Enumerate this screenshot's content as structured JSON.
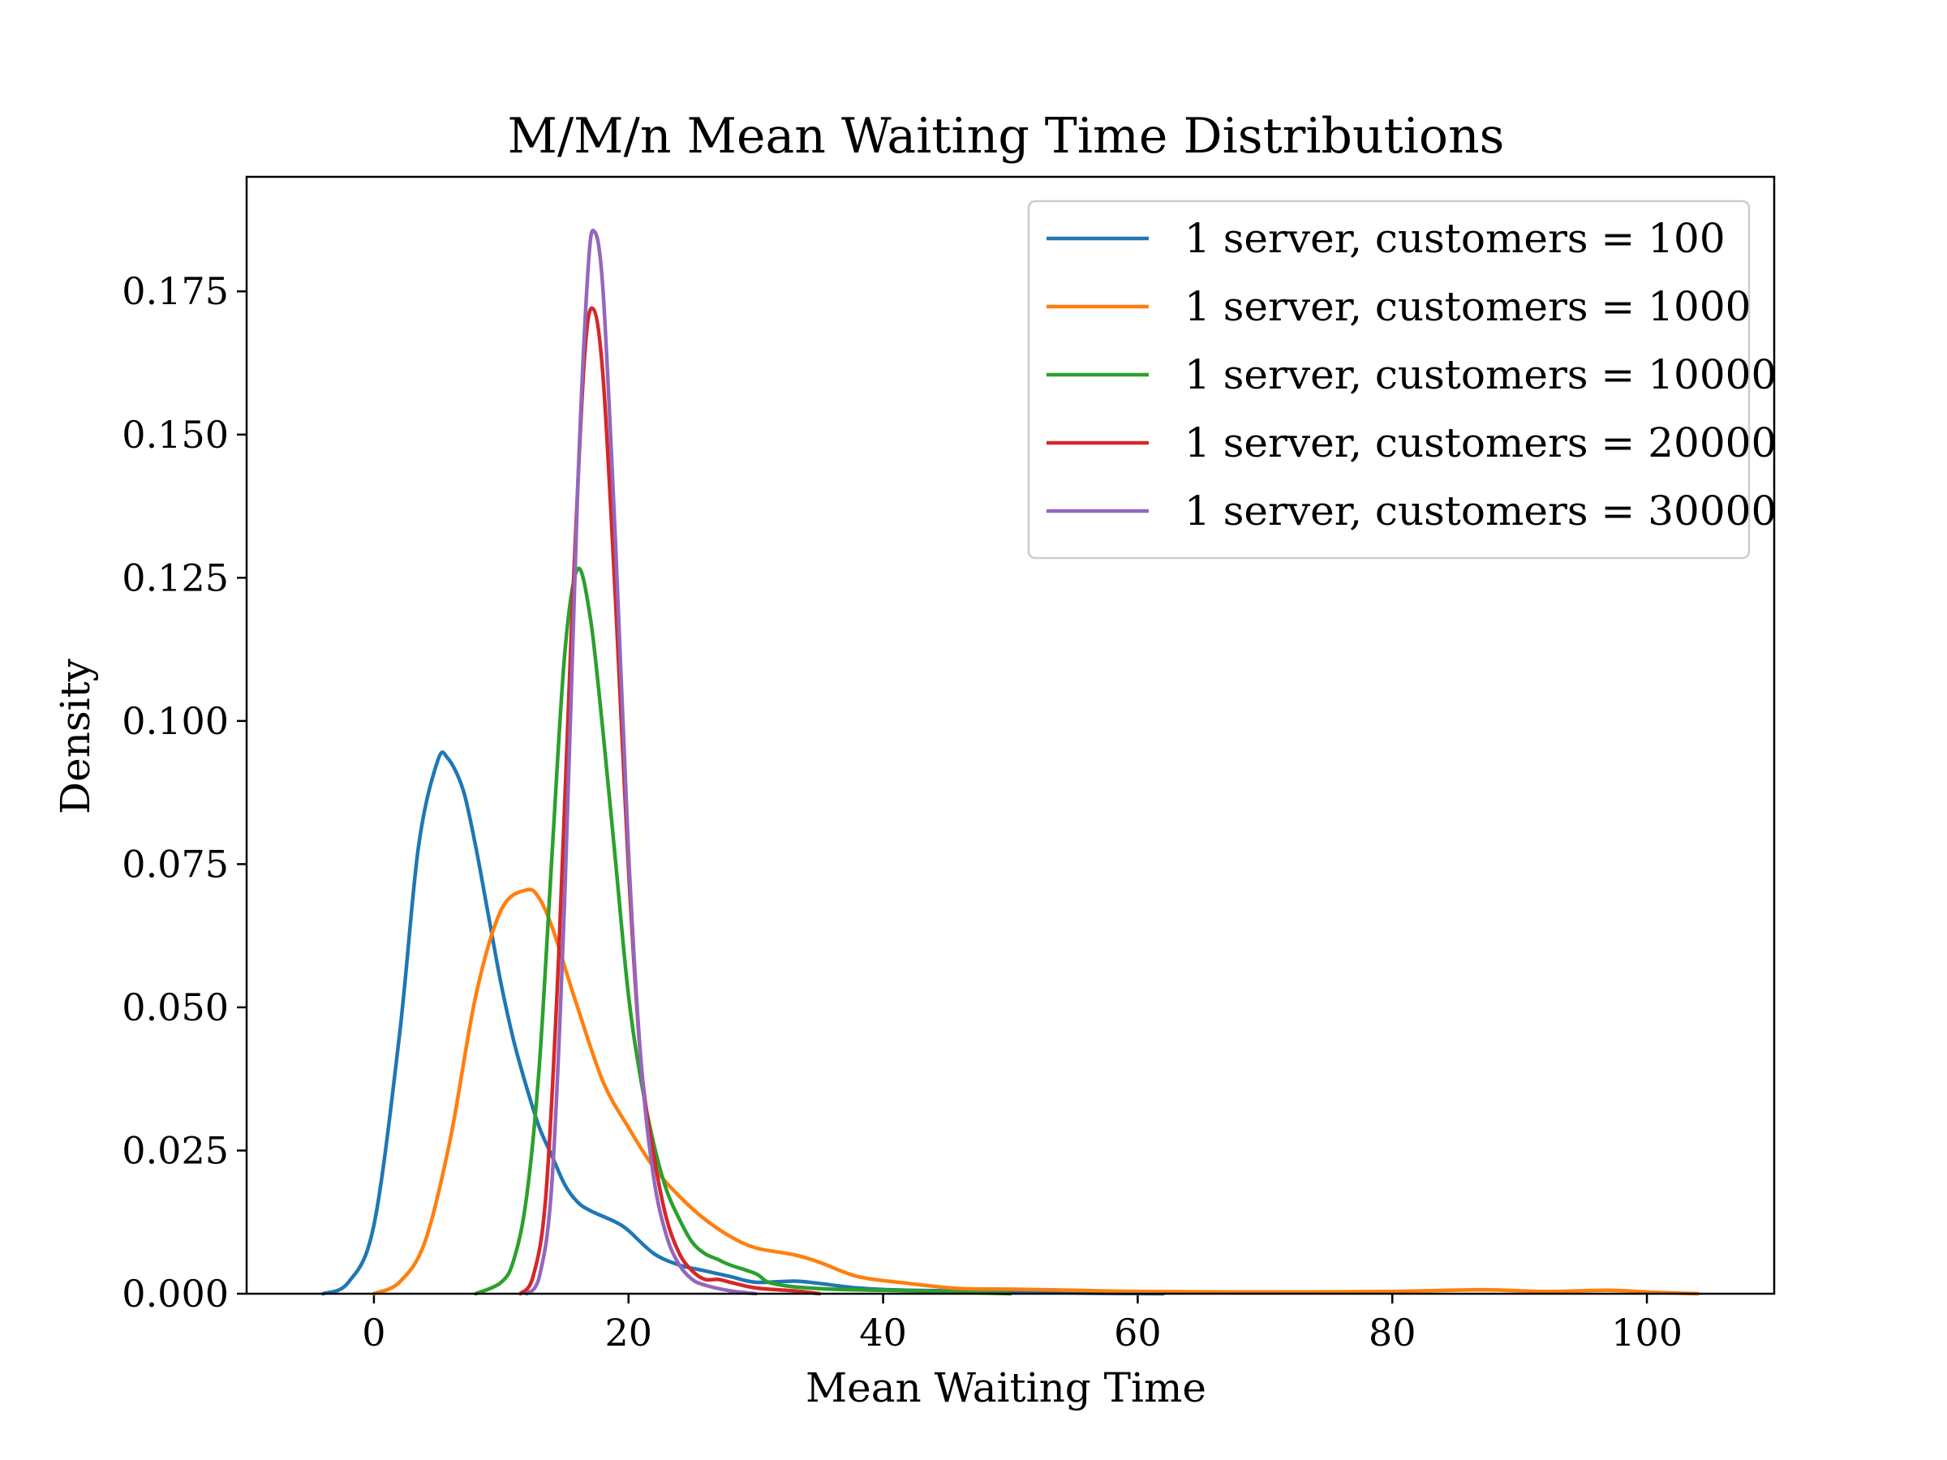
{
  "chart_data": {
    "type": "line",
    "title": "M/M/n Mean Waiting Time Distributions",
    "xlabel": "Mean Waiting Time",
    "ylabel": "Density",
    "xlim": [
      -10,
      110
    ],
    "ylim": [
      0,
      0.195
    ],
    "xticks": [
      0,
      20,
      40,
      60,
      80,
      100
    ],
    "xtick_labels": [
      "0",
      "20",
      "40",
      "60",
      "80",
      "100"
    ],
    "yticks": [
      0,
      0.025,
      0.05,
      0.075,
      0.1,
      0.125,
      0.15,
      0.175
    ],
    "ytick_labels": [
      "0.000",
      "0.025",
      "0.050",
      "0.075",
      "0.100",
      "0.125",
      "0.150",
      "0.175"
    ],
    "grid": false,
    "legend_position": "top-right",
    "series": [
      {
        "name": "1 server, customers = 100",
        "color": "#1f77b4",
        "points": [
          [
            -4,
            0
          ],
          [
            -2,
            0.002
          ],
          [
            0,
            0.012
          ],
          [
            2,
            0.045
          ],
          [
            3.5,
            0.078
          ],
          [
            5,
            0.093
          ],
          [
            5.8,
            0.0935
          ],
          [
            7,
            0.088
          ],
          [
            8,
            0.078
          ],
          [
            9,
            0.066
          ],
          [
            10,
            0.054
          ],
          [
            11,
            0.044
          ],
          [
            12,
            0.036
          ],
          [
            13,
            0.029
          ],
          [
            14,
            0.024
          ],
          [
            15,
            0.019
          ],
          [
            16,
            0.016
          ],
          [
            17,
            0.0145
          ],
          [
            19,
            0.0125
          ],
          [
            20,
            0.011
          ],
          [
            22,
            0.007
          ],
          [
            24,
            0.005
          ],
          [
            26,
            0.004
          ],
          [
            28,
            0.003
          ],
          [
            30,
            0.002
          ],
          [
            33,
            0.0022
          ],
          [
            35,
            0.0018
          ],
          [
            38,
            0.001
          ],
          [
            42,
            0.0006
          ],
          [
            50,
            0.0004
          ],
          [
            56,
            0.0001
          ],
          [
            62,
            0
          ]
        ]
      },
      {
        "name": "1 server, customers = 1000",
        "color": "#ff7f0e",
        "points": [
          [
            0,
            0
          ],
          [
            2,
            0.002
          ],
          [
            4,
            0.009
          ],
          [
            6,
            0.027
          ],
          [
            8,
            0.052
          ],
          [
            10,
            0.067
          ],
          [
            12,
            0.0705
          ],
          [
            13,
            0.069
          ],
          [
            14,
            0.064
          ],
          [
            15,
            0.057
          ],
          [
            16,
            0.05
          ],
          [
            18,
            0.037
          ],
          [
            20,
            0.029
          ],
          [
            22,
            0.022
          ],
          [
            24,
            0.017
          ],
          [
            26,
            0.013
          ],
          [
            28,
            0.01
          ],
          [
            30,
            0.008
          ],
          [
            33,
            0.0068
          ],
          [
            35,
            0.0055
          ],
          [
            38,
            0.003
          ],
          [
            42,
            0.0018
          ],
          [
            46,
            0.0009
          ],
          [
            50,
            0.0008
          ],
          [
            55,
            0.0006
          ],
          [
            60,
            0.0004
          ],
          [
            70,
            0.0003
          ],
          [
            80,
            0.0004
          ],
          [
            87,
            0.0007
          ],
          [
            92,
            0.0004
          ],
          [
            97,
            0.0006
          ],
          [
            100,
            0.0003
          ],
          [
            104,
            0
          ]
        ]
      },
      {
        "name": "1 server, customers = 10000",
        "color": "#2ca02c",
        "points": [
          [
            8,
            0
          ],
          [
            10,
            0.002
          ],
          [
            11,
            0.006
          ],
          [
            12,
            0.017
          ],
          [
            13,
            0.04
          ],
          [
            14,
            0.077
          ],
          [
            15,
            0.112
          ],
          [
            16,
            0.1265
          ],
          [
            17,
            0.118
          ],
          [
            18,
            0.098
          ],
          [
            19,
            0.075
          ],
          [
            20,
            0.052
          ],
          [
            21,
            0.037
          ],
          [
            22,
            0.026
          ],
          [
            23,
            0.018
          ],
          [
            24,
            0.013
          ],
          [
            25,
            0.009
          ],
          [
            26,
            0.007
          ],
          [
            27,
            0.006
          ],
          [
            28,
            0.005
          ],
          [
            30,
            0.0035
          ],
          [
            31,
            0.002
          ],
          [
            33,
            0.0012
          ],
          [
            36,
            0.0008
          ],
          [
            40,
            0.0006
          ],
          [
            44,
            0.0004
          ],
          [
            50,
            0
          ]
        ]
      },
      {
        "name": "1 server, customers = 20000",
        "color": "#d62728",
        "points": [
          [
            11.5,
            0
          ],
          [
            12.5,
            0.003
          ],
          [
            13.5,
            0.017
          ],
          [
            14.5,
            0.058
          ],
          [
            15.5,
            0.115
          ],
          [
            16.5,
            0.162
          ],
          [
            17.2,
            0.172
          ],
          [
            18,
            0.16
          ],
          [
            19,
            0.12
          ],
          [
            20,
            0.074
          ],
          [
            21,
            0.04
          ],
          [
            22,
            0.024
          ],
          [
            23,
            0.013
          ],
          [
            24,
            0.007
          ],
          [
            25,
            0.004
          ],
          [
            26,
            0.0025
          ],
          [
            27,
            0.0025
          ],
          [
            28,
            0.002
          ],
          [
            30,
            0.001
          ],
          [
            33,
            0.0005
          ],
          [
            35,
            0
          ]
        ]
      },
      {
        "name": "1 server, customers = 30000",
        "color": "#9467bd",
        "points": [
          [
            12,
            0
          ],
          [
            13,
            0.003
          ],
          [
            14,
            0.02
          ],
          [
            15,
            0.07
          ],
          [
            16,
            0.14
          ],
          [
            16.8,
            0.178
          ],
          [
            17.3,
            0.1855
          ],
          [
            18,
            0.175
          ],
          [
            19,
            0.13
          ],
          [
            20,
            0.077
          ],
          [
            21,
            0.04
          ],
          [
            22,
            0.02
          ],
          [
            23,
            0.01
          ],
          [
            24,
            0.005
          ],
          [
            25,
            0.0025
          ],
          [
            26,
            0.0015
          ],
          [
            28,
            0.0005
          ],
          [
            30,
            0
          ]
        ]
      }
    ]
  }
}
